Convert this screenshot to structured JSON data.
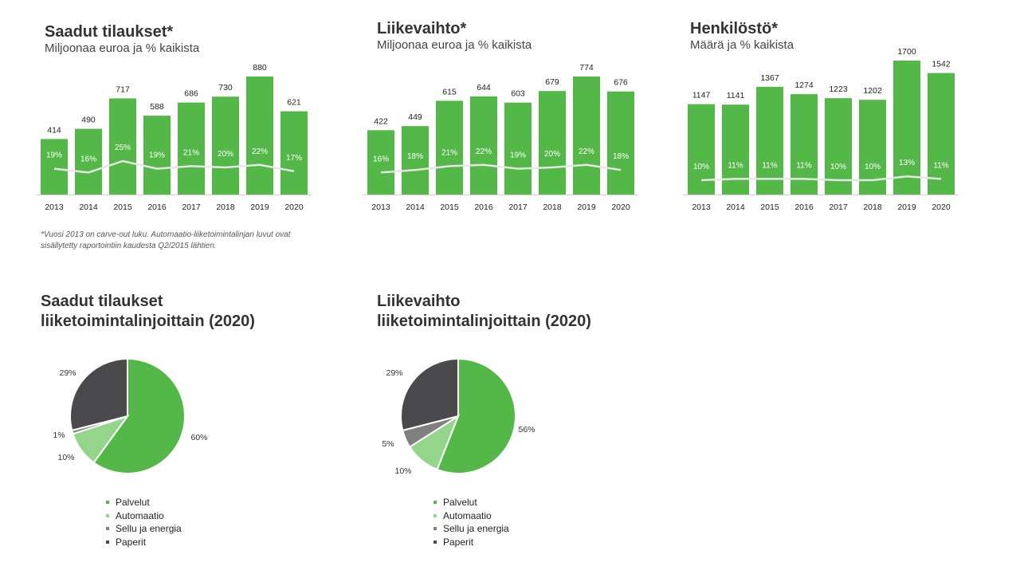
{
  "colors": {
    "bar": "#53b848",
    "line": "#e6e6e6",
    "axis": "#d0d0d0",
    "palvelut": "#53b848",
    "automaatio": "#93d58b",
    "sellu": "#808080",
    "paperit": "#4a4a4c"
  },
  "footnote": "*Vuosi 2013 on carve-out luku. Automaatio-liiketoimintalinjan luvut ovat sisällytetty raportointiin kaudesta Q2/2015 lähtien.",
  "chart_data": [
    {
      "type": "bar",
      "title": "Saadut tilaukset*",
      "subtitle": "Miljoonaa euroa ja % kaikista",
      "categories": [
        "2013",
        "2014",
        "2015",
        "2016",
        "2017",
        "2018",
        "2019",
        "2020"
      ],
      "values": [
        414,
        490,
        717,
        588,
        686,
        730,
        880,
        621
      ],
      "value_labels": [
        "414",
        "490",
        "717",
        "588",
        "686",
        "730",
        "880",
        "621"
      ],
      "share_labels": [
        "19%",
        "16%",
        "25%",
        "19%",
        "21%",
        "20%",
        "22%",
        "17%"
      ],
      "share_values": [
        19,
        16,
        25,
        19,
        21,
        20,
        22,
        17
      ],
      "grid": false
    },
    {
      "type": "bar",
      "title": "Liikevaihto*",
      "subtitle": "Miljoonaa euroa ja % kaikista",
      "categories": [
        "2013",
        "2014",
        "2015",
        "2016",
        "2017",
        "2018",
        "2019",
        "2020"
      ],
      "values": [
        422,
        449,
        615,
        644,
        603,
        679,
        774,
        676
      ],
      "value_labels": [
        "422",
        "449",
        "615",
        "644",
        "603",
        "679",
        "774",
        "676"
      ],
      "share_labels": [
        "16%",
        "18%",
        "21%",
        "22%",
        "19%",
        "20%",
        "22%",
        "18%"
      ],
      "share_values": [
        16,
        18,
        21,
        22,
        19,
        20,
        22,
        18
      ],
      "grid": false
    },
    {
      "type": "bar",
      "title": "Henkilöstö*",
      "subtitle": "Määrä ja % kaikista",
      "categories": [
        "2013",
        "2014",
        "2015",
        "2016",
        "2017",
        "2018",
        "2019",
        "2020"
      ],
      "values": [
        1147,
        1141,
        1367,
        1274,
        1223,
        1202,
        1700,
        1542
      ],
      "value_labels": [
        "1147",
        "1141",
        "1367",
        "1274",
        "1223",
        "1202",
        "1700",
        "1542"
      ],
      "share_labels": [
        "10%",
        "11%",
        "11%",
        "11%",
        "10%",
        "10%",
        "13%",
        "11%"
      ],
      "share_values": [
        10,
        11,
        11,
        11,
        10,
        10,
        13,
        11
      ],
      "grid": false
    },
    {
      "type": "pie",
      "title_lines": [
        "Saadut tilaukset",
        "liiketoimintalinjoittain  (2020)"
      ],
      "slices": [
        {
          "name": "Palvelut",
          "value": 60,
          "label": "60%"
        },
        {
          "name": "Automaatio",
          "value": 10,
          "label": "10%"
        },
        {
          "name": "Sellu ja energia",
          "value": 1,
          "label": "1%"
        },
        {
          "name": "Paperit",
          "value": 29,
          "label": "29%"
        }
      ],
      "legend": "bottom"
    },
    {
      "type": "pie",
      "title_lines": [
        "Liikevaihto",
        "liiketoimintalinjoittain  (2020)"
      ],
      "slices": [
        {
          "name": "Palvelut",
          "value": 56,
          "label": "56%"
        },
        {
          "name": "Automaatio",
          "value": 10,
          "label": "10%"
        },
        {
          "name": "Sellu ja energia",
          "value": 5,
          "label": "5%"
        },
        {
          "name": "Paperit",
          "value": 29,
          "label": "29%"
        }
      ],
      "legend": "bottom"
    }
  ]
}
